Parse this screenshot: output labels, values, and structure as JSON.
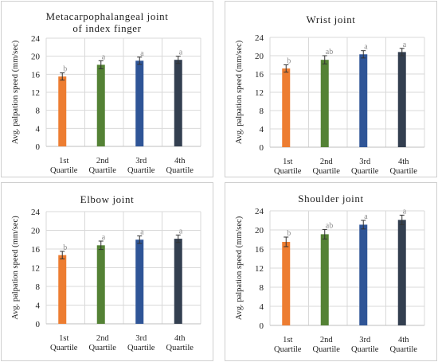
{
  "chart_data": [
    {
      "type": "bar",
      "title_lines": [
        "Metacarpophalangeal joint",
        "of index finger"
      ],
      "ylabel": "Avg. palpation speed (mm/sec)",
      "ylim": [
        0,
        24
      ],
      "yticks": [
        0,
        4,
        8,
        12,
        16,
        20,
        24
      ],
      "grid": true,
      "categories": [
        {
          "l1": "1st",
          "l2": "Quartile"
        },
        {
          "l1": "2nd",
          "l2": "Quartile"
        },
        {
          "l1": "3rd",
          "l2": "Quartile"
        },
        {
          "l1": "4th",
          "l2": "Quartile"
        }
      ],
      "values": [
        15.5,
        18.1,
        19.0,
        19.2
      ],
      "errors": [
        0.8,
        0.9,
        0.8,
        0.8
      ],
      "labels": [
        "b",
        "a",
        "a",
        "a"
      ],
      "colors": [
        "#ED7D31",
        "#548235",
        "#2F5597",
        "#333F50"
      ]
    },
    {
      "type": "bar",
      "title_lines": [
        "Wrist joint"
      ],
      "ylabel": "Avg. palpation speed (mm/sec)",
      "ylim": [
        0,
        24
      ],
      "yticks": [
        0,
        4,
        8,
        12,
        16,
        20,
        24
      ],
      "grid": true,
      "categories": [
        {
          "l1": "1st",
          "l2": "Quartile"
        },
        {
          "l1": "2nd",
          "l2": "Quartile"
        },
        {
          "l1": "3rd",
          "l2": "Quartile"
        },
        {
          "l1": "4th",
          "l2": "Quartile"
        }
      ],
      "values": [
        17.2,
        19.1,
        20.3,
        20.8
      ],
      "errors": [
        0.8,
        0.9,
        0.8,
        0.8
      ],
      "labels": [
        "b",
        "ab",
        "a",
        "a"
      ],
      "colors": [
        "#ED7D31",
        "#548235",
        "#2F5597",
        "#333F50"
      ]
    },
    {
      "type": "bar",
      "title_lines": [
        "Elbow joint"
      ],
      "ylabel": "Avg. palpation speed (mm/sec)",
      "ylim": [
        0,
        24
      ],
      "yticks": [
        0,
        4,
        8,
        12,
        16,
        20,
        24
      ],
      "grid": true,
      "categories": [
        {
          "l1": "1st",
          "l2": "Quartile"
        },
        {
          "l1": "2nd",
          "l2": "Quartile"
        },
        {
          "l1": "3rd",
          "l2": "Quartile"
        },
        {
          "l1": "4th",
          "l2": "Quartile"
        }
      ],
      "values": [
        14.7,
        16.8,
        18.0,
        18.2
      ],
      "errors": [
        0.8,
        0.9,
        0.8,
        0.8
      ],
      "labels": [
        "b",
        "a",
        "a",
        "a"
      ],
      "colors": [
        "#ED7D31",
        "#548235",
        "#2F5597",
        "#333F50"
      ]
    },
    {
      "type": "bar",
      "title_lines": [
        "Shoulder joint"
      ],
      "ylabel": "Avg. palpation speed (mm/sec)",
      "ylim": [
        0,
        24
      ],
      "yticks": [
        0,
        4,
        8,
        12,
        16,
        20,
        24
      ],
      "grid": true,
      "categories": [
        {
          "l1": "1st",
          "l2": "Quartile"
        },
        {
          "l1": "2nd",
          "l2": "Quartile"
        },
        {
          "l1": "3rd",
          "l2": "Quartile"
        },
        {
          "l1": "4th",
          "l2": "Quartile"
        }
      ],
      "values": [
        17.5,
        19.1,
        21.1,
        22.1
      ],
      "errors": [
        1.0,
        1.0,
        0.9,
        1.0
      ],
      "labels": [
        "b",
        "ab",
        "a",
        "a"
      ],
      "colors": [
        "#ED7D31",
        "#548235",
        "#2F5597",
        "#333F50"
      ]
    }
  ]
}
